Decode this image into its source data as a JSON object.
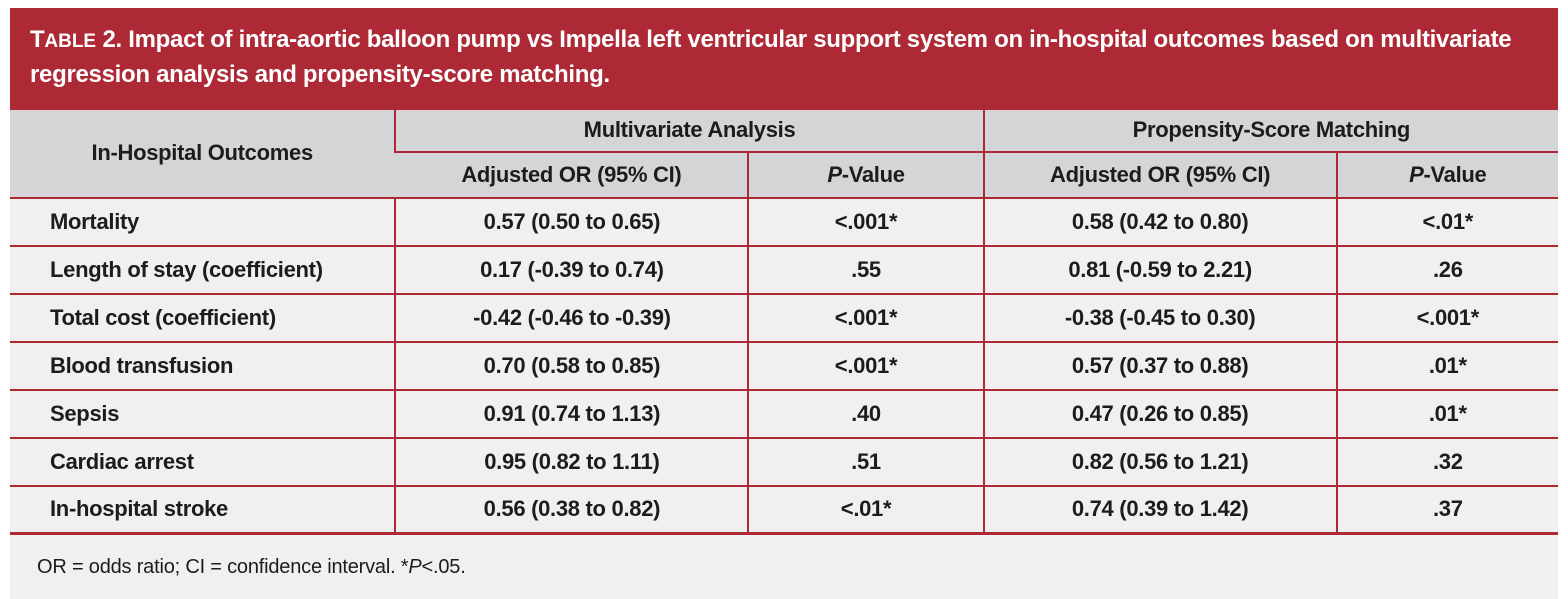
{
  "accent_color": "#ac2935",
  "header_bg": "#d5d4d6",
  "row_bg": "#f1eff0",
  "title": {
    "label_first": "T",
    "label_rest": "ABLE",
    "label_num": " 2. ",
    "text": "Impact of intra-aortic balloon pump vs Impella left ventricular support system on in-hospital outcomes based on multivariate regression analysis and propensity-score matching."
  },
  "table": {
    "col1_header": "In-Hospital Outcomes",
    "group_headers": {
      "multivariate": "Multivariate Analysis",
      "propensity": "Propensity-Score Matching"
    },
    "sub_headers": {
      "adjusted_or": "Adjusted OR (95% CI)",
      "p_italic": "P",
      "p_rest": "-Value"
    },
    "rows": [
      [
        "Mortality",
        "0.57 (0.50 to 0.65)",
        "<.001*",
        "0.58 (0.42 to 0.80)",
        "<.01*"
      ],
      [
        "Length of stay (coefficient)",
        "0.17 (-0.39 to 0.74)",
        ".55",
        "0.81 (-0.59 to 2.21)",
        ".26"
      ],
      [
        "Total cost (coefficient)",
        "-0.42 (-0.46 to -0.39)",
        "<.001*",
        "-0.38 (-0.45 to 0.30)",
        "<.001*"
      ],
      [
        "Blood transfusion",
        "0.70 (0.58 to 0.85)",
        "<.001*",
        "0.57 (0.37 to 0.88)",
        ".01*"
      ],
      [
        "Sepsis",
        "0.91 (0.74 to 1.13)",
        ".40",
        "0.47 (0.26 to 0.85)",
        ".01*"
      ],
      [
        "Cardiac arrest",
        "0.95 (0.82 to 1.11)",
        ".51",
        "0.82 (0.56 to 1.21)",
        ".32"
      ],
      [
        "In-hospital stroke",
        "0.56 (0.38 to 0.82)",
        "<.01*",
        "0.74 (0.39 to 1.42)",
        ".37"
      ]
    ]
  },
  "footnote": {
    "part1": "OR = odds ratio; CI = confidence interval. *",
    "p_italic": "P",
    "part2": "<.05."
  }
}
